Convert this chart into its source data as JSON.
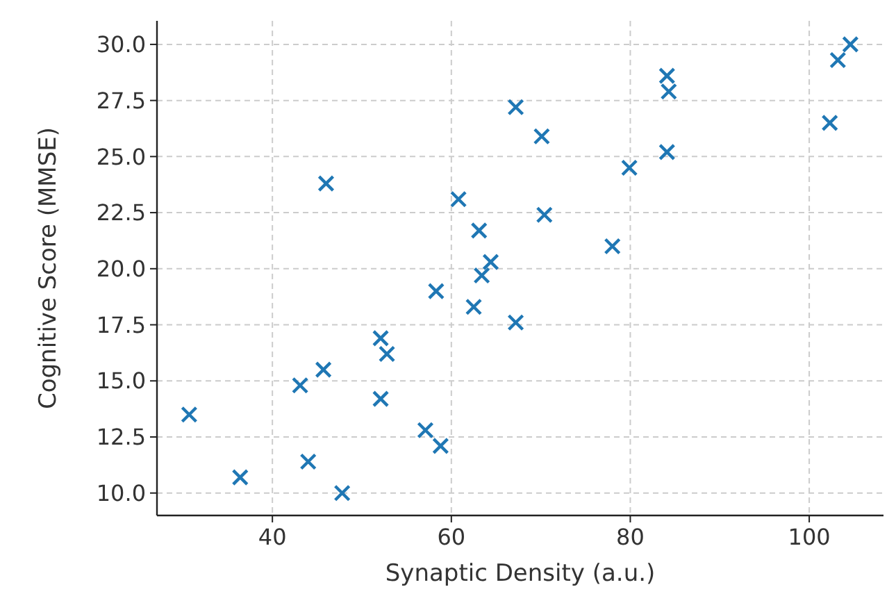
{
  "chart_data": {
    "type": "scatter",
    "xlabel": "Synaptic Density (a.u.)",
    "ylabel": "Cognitive Score (MMSE)",
    "x": [
      30.7,
      36.4,
      43.1,
      44.0,
      45.7,
      46.0,
      47.8,
      52.1,
      52.8,
      52.1,
      57.1,
      58.3,
      58.8,
      60.8,
      62.5,
      63.1,
      63.4,
      64.4,
      67.2,
      67.2,
      70.1,
      70.4,
      78.0,
      79.9,
      84.1,
      84.3,
      84.1,
      102.3,
      103.2,
      104.6
    ],
    "series": [
      {
        "color": "#1f77b4",
        "values": [
          13.5,
          10.7,
          14.8,
          11.4,
          15.5,
          23.8,
          10.0,
          16.9,
          16.2,
          14.2,
          12.8,
          19.0,
          12.1,
          23.1,
          18.3,
          21.7,
          19.7,
          20.3,
          27.2,
          17.6,
          25.9,
          22.4,
          21.0,
          24.5,
          28.6,
          27.9,
          25.2,
          26.5,
          29.3,
          30.0
        ]
      }
    ],
    "xlim": [
      27.1,
      108.3
    ],
    "ylim": [
      9.0,
      31.05
    ],
    "xticks": [
      40,
      60,
      80,
      100
    ],
    "yticks": [
      {
        "value": 10,
        "label": "10.0"
      },
      {
        "value": 12.5,
        "label": "12.5"
      },
      {
        "value": 15,
        "label": "15.0"
      },
      {
        "value": 17.5,
        "label": "17.5"
      },
      {
        "value": 20,
        "label": "20.0"
      },
      {
        "value": 22.5,
        "label": "22.5"
      },
      {
        "value": 25,
        "label": "25.0"
      },
      {
        "value": 27.5,
        "label": "27.5"
      },
      {
        "value": 30,
        "label": "30.0"
      }
    ],
    "grid": true,
    "marker": "cross"
  }
}
